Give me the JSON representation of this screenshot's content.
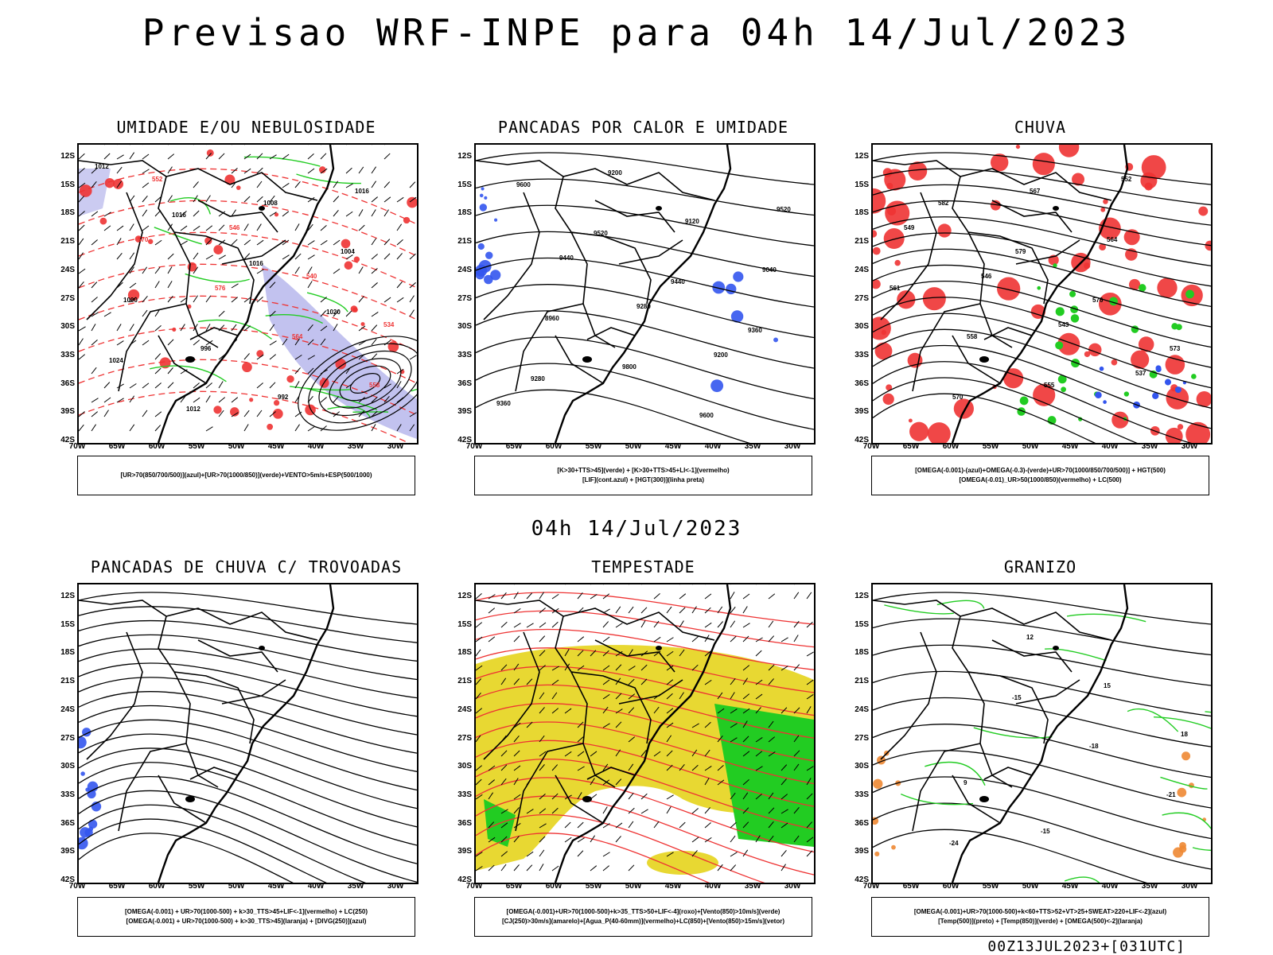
{
  "title": "Previsao WRF-INPE  para 04h 14/Jul/2023",
  "mid_label": "04h 14/Jul/2023",
  "footer": "00Z13JUL2023+[031UTC]",
  "lat_ticks": [
    "12S",
    "15S",
    "18S",
    "21S",
    "24S",
    "27S",
    "30S",
    "33S",
    "36S",
    "39S",
    "42S"
  ],
  "lon_ticks": [
    "70W",
    "65W",
    "60W",
    "55W",
    "50W",
    "45W",
    "40W",
    "35W",
    "30W"
  ],
  "colors": {
    "green": "#22cc22",
    "red": "#ee3333",
    "blue": "#3355ee",
    "yellow": "#e8d832",
    "lavender": "#a8a8e8",
    "orange": "#ee8833"
  },
  "panels": [
    {
      "title": "UMIDADE E/OU NEBULOSIDADE",
      "legend": [
        "[UR>70(850/700/500)](azul)+[UR>70(1000/850)](verde)+VENTO>5m/s+ESP(500/1000)"
      ],
      "labels": [
        "1012",
        "1016",
        "1016",
        "1020",
        "1024",
        "1012",
        "1008",
        "1004",
        "1000",
        "996",
        "992",
        "1016",
        "570",
        "576",
        "564",
        "558",
        "552",
        "546",
        "540",
        "534"
      ]
    },
    {
      "title": "PANCADAS POR CALOR E UMIDADE",
      "legend": [
        "[K>30+TTS>45](verde) + [K>30+TTS>45+LI<-1](vermelho)",
        "[LIF](cont.azul) + [HGT(300)](linha preta)"
      ],
      "labels": [
        "9600",
        "9520",
        "9440",
        "9360",
        "9280",
        "9200",
        "9120",
        "9040",
        "8960",
        "9800",
        "9600",
        "9520",
        "9440",
        "9280",
        "9200",
        "9360"
      ]
    },
    {
      "title": "CHUVA",
      "legend": [
        "[OMEGA(-0.001)-(azul)+OMEGA(-0.3)-(verde)+UR>70(1000/850/700/500)] + HGT(500)",
        "[OMEGA(-0.01)_UR>50(1000/850)(vermelho) + LC(500)"
      ],
      "labels": [
        "582",
        "579",
        "576",
        "573",
        "570",
        "567",
        "564",
        "561",
        "558",
        "555",
        "552",
        "549",
        "546",
        "543",
        "537"
      ]
    },
    {
      "title": "PANCADAS DE CHUVA C/ TROVOADAS",
      "legend": [
        "[OMEGA(-0.001) + UR>70(1000-500) + k>30_TTS>45+LIF<-1](vermelho) + LC(250)",
        "[OMEGA(-0.001) + UR>70(1000-500) + k>30_TTS>45](laranja) + [DIVG(250)](azul)"
      ],
      "labels": []
    },
    {
      "title": "TEMPESTADE",
      "legend": [
        "[OMEGA(-0.001)+UR>70(1000-500)+k>35_TTS>50+LIF<-4](roxo)+[Vento(850)>10m/s](verde)",
        "[CJ(250)>30m/s](amarelo)+[Agua_P(40-60mm)](vermelho)+LC(850)+[Vento(850)>15m/s](vetor)"
      ],
      "labels": []
    },
    {
      "title": "GRANIZO",
      "legend": [
        "[OMEGA(-0.001)+UR>70(1000-500)+k<60+TTS>52+VT>25+SWEAT>220+LIF<-2](azul)",
        "[Temp(500)](preto) + [Temp(850)](verde) + [OMEGA(500)<-2](laranja)"
      ],
      "labels": [
        "-15",
        "-18",
        "-21",
        "-24",
        "12",
        "15",
        "18",
        "9",
        "-15"
      ]
    }
  ]
}
